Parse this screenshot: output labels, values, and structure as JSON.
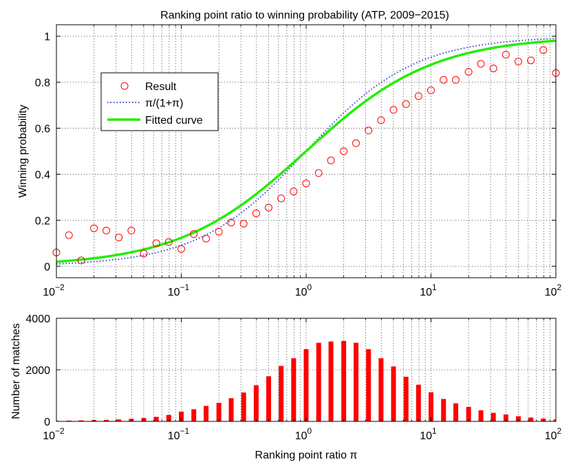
{
  "chart_data": [
    {
      "type": "scatter",
      "title": "Ranking point ratio to winning probability (ATP, 2009−2015)",
      "xlabel": "",
      "ylabel": "Winning probability",
      "xscale": "log",
      "xlim": [
        0.01,
        100
      ],
      "ylim": [
        -0.05,
        1.05
      ],
      "yticks": [
        0,
        0.2,
        0.4,
        0.6,
        0.8,
        1
      ],
      "ytick_labels": [
        "0",
        "0.2",
        "0.4",
        "0.6",
        "0.8",
        "1"
      ],
      "xtick_bases": [
        "10",
        "10",
        "10",
        "10",
        "10"
      ],
      "xtick_exponents": [
        "−2",
        "−1",
        "0",
        "1",
        "2"
      ],
      "grid": true,
      "legend": {
        "position": "left",
        "entries": [
          "Result",
          "π/(1+π)",
          "Fitted curve"
        ]
      },
      "series": [
        {
          "name": "Result",
          "style": "circle-markers",
          "color": "#ff0000",
          "x": [
            0.01,
            0.0126,
            0.0158,
            0.02,
            0.0251,
            0.0316,
            0.0398,
            0.0501,
            0.0631,
            0.0794,
            0.1,
            0.126,
            0.158,
            0.2,
            0.251,
            0.316,
            0.398,
            0.501,
            0.631,
            0.794,
            1,
            1.26,
            1.58,
            2,
            2.51,
            3.16,
            3.98,
            5.01,
            6.31,
            7.94,
            10,
            12.6,
            15.8,
            20,
            25.1,
            31.6,
            39.8,
            50.1,
            63.1,
            79.4,
            100
          ],
          "values": [
            0.06,
            0.135,
            0.025,
            0.165,
            0.155,
            0.125,
            0.155,
            0.055,
            0.1,
            0.105,
            0.075,
            0.14,
            0.12,
            0.15,
            0.19,
            0.185,
            0.23,
            0.255,
            0.295,
            0.325,
            0.36,
            0.405,
            0.46,
            0.5,
            0.535,
            0.59,
            0.635,
            0.68,
            0.705,
            0.74,
            0.765,
            0.81,
            0.81,
            0.845,
            0.88,
            0.86,
            0.92,
            0.89,
            0.895,
            0.94,
            0.84
          ]
        },
        {
          "name": "π/(1+π)",
          "style": "dotted-line",
          "color": "#3344cc",
          "formula": "x/(1+x)"
        },
        {
          "name": "Fitted curve",
          "style": "solid-line",
          "color": "#22ee00",
          "formula": "x^0.85/(1+x^0.85)"
        }
      ]
    },
    {
      "type": "bar",
      "title": "",
      "xlabel": "Ranking point ratio π",
      "ylabel": "Number of matches",
      "xscale": "log",
      "xlim": [
        0.01,
        100
      ],
      "ylim": [
        0,
        4000
      ],
      "yticks": [
        0,
        2000,
        4000
      ],
      "ytick_labels": [
        "0",
        "2000",
        "4000"
      ],
      "xtick_bases": [
        "10",
        "10",
        "10",
        "10",
        "10"
      ],
      "xtick_exponents": [
        "−2",
        "−1",
        "0",
        "1",
        "2"
      ],
      "grid": true,
      "color": "#ff0000",
      "x": [
        0.01,
        0.0126,
        0.0158,
        0.02,
        0.0251,
        0.0316,
        0.0398,
        0.0501,
        0.0631,
        0.0794,
        0.1,
        0.126,
        0.158,
        0.2,
        0.251,
        0.316,
        0.398,
        0.501,
        0.631,
        0.794,
        1,
        1.26,
        1.58,
        2,
        2.51,
        3.16,
        3.98,
        5.01,
        6.31,
        7.94,
        10,
        12.6,
        15.8,
        20,
        25.1,
        31.6,
        39.8,
        50.1,
        63.1,
        79.4,
        100
      ],
      "values": [
        25,
        30,
        40,
        50,
        60,
        75,
        100,
        130,
        175,
        250,
        380,
        470,
        600,
        720,
        900,
        1120,
        1400,
        1750,
        2150,
        2450,
        2800,
        3050,
        3100,
        3120,
        3050,
        2800,
        2450,
        2130,
        1730,
        1420,
        1130,
        870,
        700,
        560,
        430,
        330,
        270,
        200,
        150,
        110,
        75
      ]
    }
  ]
}
